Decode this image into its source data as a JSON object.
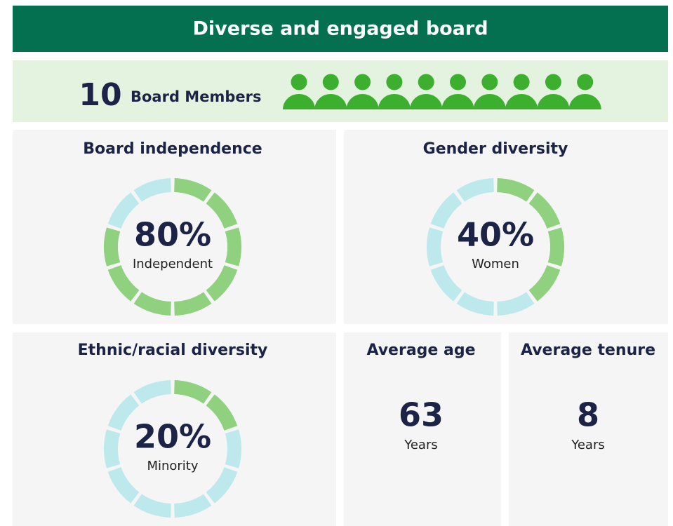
{
  "header": {
    "title": "Diverse and engaged board"
  },
  "members": {
    "count": 10,
    "label": "Board Members"
  },
  "panels": [
    {
      "title": "Board independence",
      "value": 80,
      "value_label": "80%",
      "caption": "Independent"
    },
    {
      "title": "Gender diversity",
      "value": 40,
      "value_label": "40%",
      "caption": "Women"
    },
    {
      "title": "Ethnic/racial diversity",
      "value": 20,
      "value_label": "20%",
      "caption": "Minority"
    }
  ],
  "stats": [
    {
      "title": "Average age",
      "value": 63,
      "caption": "Years"
    },
    {
      "title": "Average tenure",
      "value": 8,
      "caption": "Years"
    }
  ]
}
